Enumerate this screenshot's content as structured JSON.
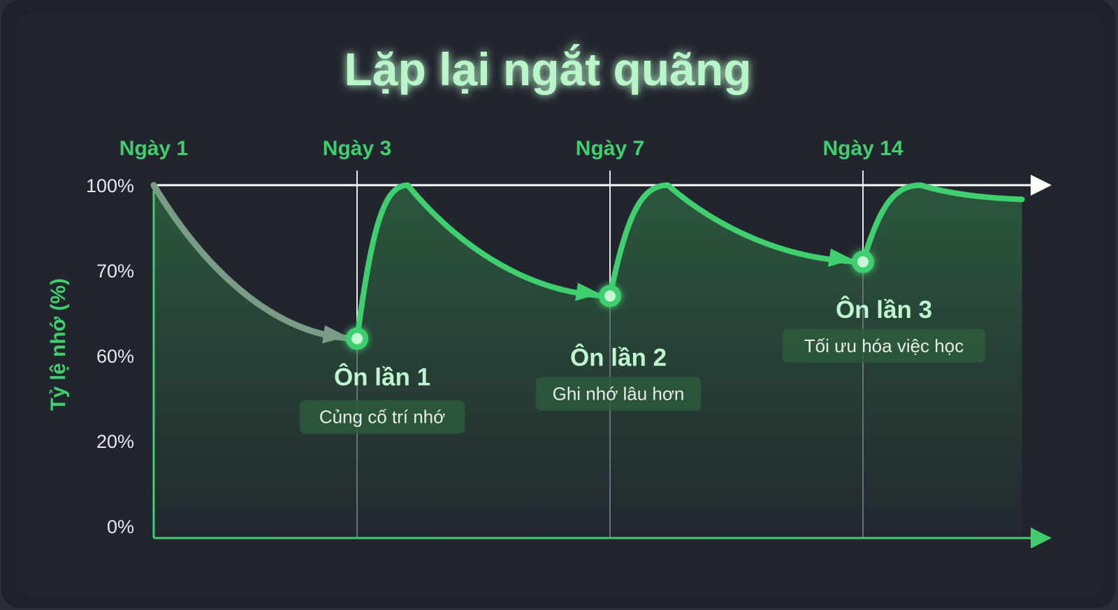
{
  "chart_data": {
    "type": "line",
    "title": "Lặp lại ngắt quãng",
    "ylabel": "Tỷ lệ nhớ (%)",
    "xlabel": "",
    "x_ticks": [
      {
        "day": 1,
        "label": "Ngày 1"
      },
      {
        "day": 3,
        "label": "Ngày 3"
      },
      {
        "day": 7,
        "label": "Ngày 7"
      },
      {
        "day": 14,
        "label": "Ngày 14"
      }
    ],
    "y_ticks": [
      {
        "value": 100,
        "label": "100%"
      },
      {
        "value": 70,
        "label": "70%"
      },
      {
        "value": 60,
        "label": "60%"
      },
      {
        "value": 20,
        "label": "20%"
      },
      {
        "value": 0,
        "label": "0%"
      }
    ],
    "curve": [
      {
        "day": 1,
        "retention": 100,
        "kind": "start"
      },
      {
        "day": 3,
        "retention": 62,
        "kind": "review"
      },
      {
        "day": 3.8,
        "retention": 100,
        "kind": "peak"
      },
      {
        "day": 7,
        "retention": 67,
        "kind": "review"
      },
      {
        "day": 8.6,
        "retention": 100,
        "kind": "peak"
      },
      {
        "day": 14,
        "retention": 73,
        "kind": "review"
      },
      {
        "day": 15.6,
        "retention": 100,
        "kind": "peak"
      },
      {
        "day": 18.4,
        "retention": 95,
        "kind": "end"
      }
    ],
    "reviews": [
      {
        "day": 3,
        "retention": 62,
        "label": "Ôn lần 1",
        "note": "Củng cố trí nhớ"
      },
      {
        "day": 7,
        "retention": 67,
        "label": "Ôn lần 2",
        "note": "Ghi nhớ lâu hơn"
      },
      {
        "day": 14,
        "retention": 73,
        "label": "Ôn lần 3",
        "note": "Tối ưu hóa việc học"
      }
    ],
    "colors": {
      "accent": "#3fcf6f",
      "title": "#b8f5c9",
      "first_decay": "#7a9c86",
      "background": "#22252e"
    },
    "grid": false,
    "legend": "none"
  }
}
